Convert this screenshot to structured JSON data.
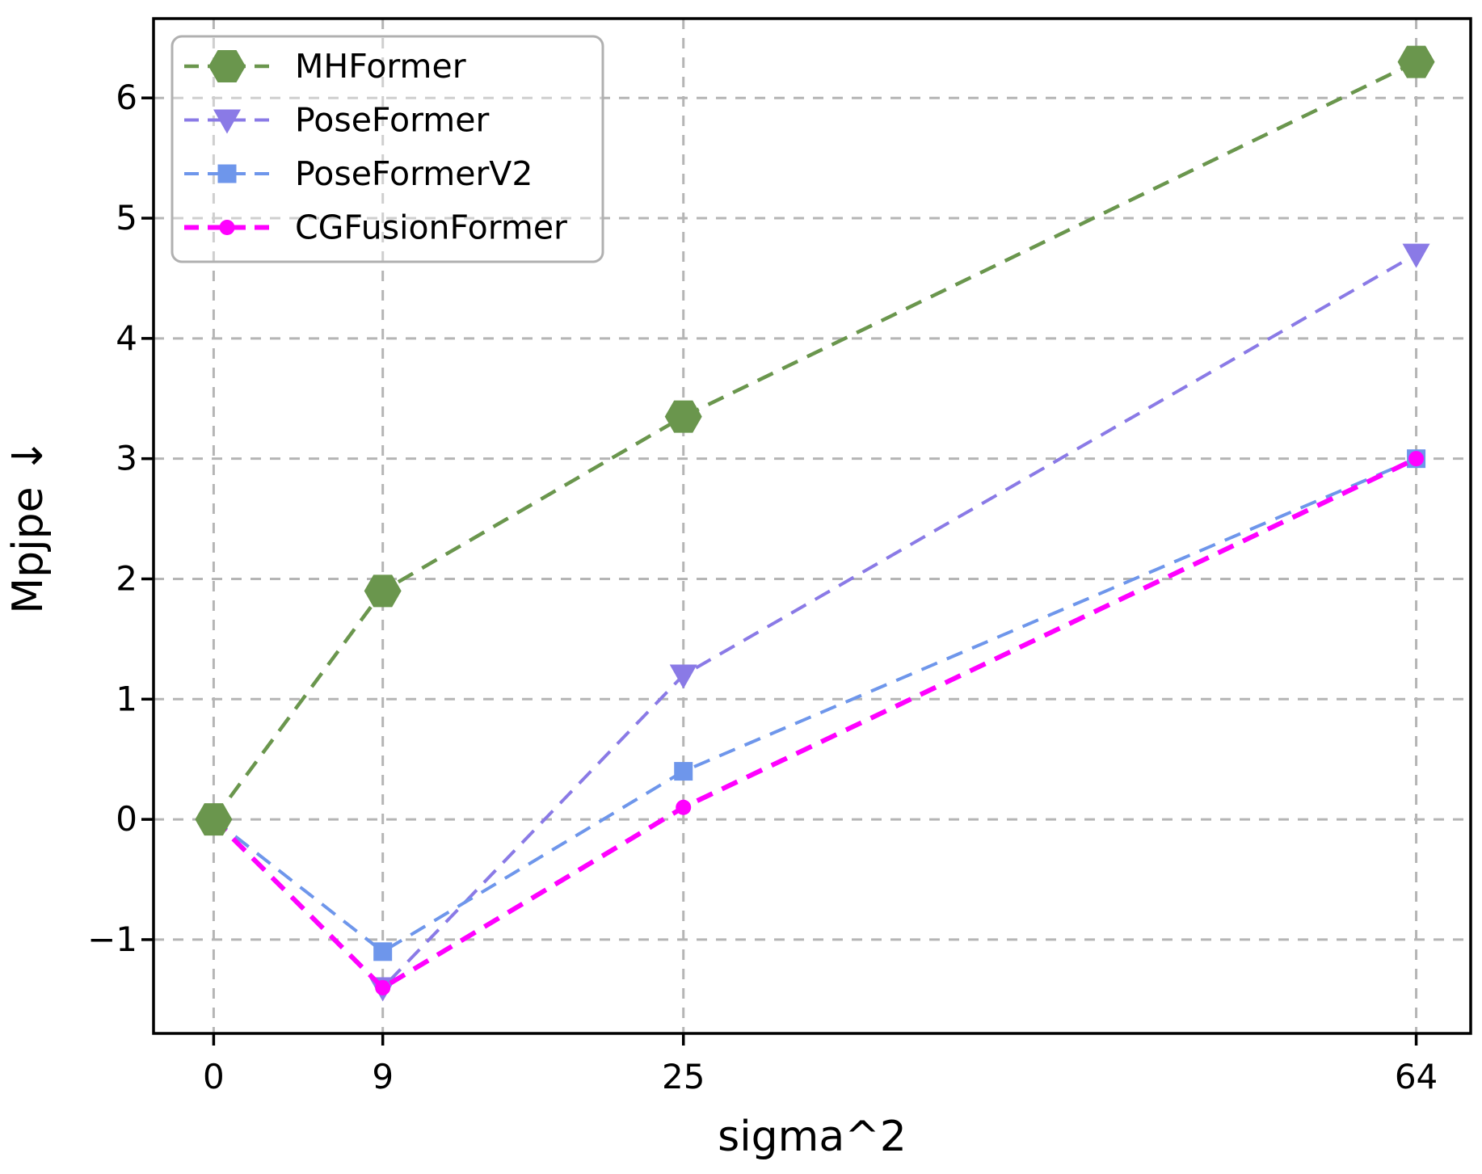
{
  "chart_data": {
    "type": "line",
    "title": "",
    "xlabel": "sigma^2",
    "ylabel": "Mpjpe ↓",
    "x": [
      0,
      9,
      25,
      64
    ],
    "xtick_labels": [
      "0",
      "9",
      "25",
      "64"
    ],
    "yticks": [
      -1,
      0,
      1,
      2,
      3,
      4,
      5,
      6
    ],
    "xlim": [
      -3.2,
      66.9
    ],
    "ylim": [
      -1.78,
      6.66
    ],
    "grid": true,
    "grid_style": "dashed",
    "line_style": "dashed",
    "legend_position": "upper-left",
    "legend_entries": [
      "MHFormer",
      "PoseFormer",
      "PoseFormerV2",
      "CGFusionFormer"
    ],
    "series": [
      {
        "name": "MHFormer",
        "marker": "hexagon",
        "color": "#6a964d",
        "line_width": 4.5,
        "values": [
          0,
          1.9,
          3.35,
          6.3
        ],
        "marker_at_first_point": true,
        "z": 4
      },
      {
        "name": "PoseFormer",
        "marker": "triangle-down",
        "color": "#8a7ae6",
        "line_width": 4,
        "values": [
          0,
          -1.4,
          1.2,
          4.7
        ],
        "marker_at_first_point": false,
        "z": 1
      },
      {
        "name": "PoseFormerV2",
        "marker": "square",
        "color": "#6e96eb",
        "line_width": 4,
        "values": [
          0,
          -1.1,
          0.4,
          3.0
        ],
        "marker_at_first_point": false,
        "z": 2
      },
      {
        "name": "CGFusionFormer",
        "marker": "circle",
        "color": "#ff00ff",
        "line_width": 6,
        "values": [
          0,
          -1.4,
          0.1,
          3.0
        ],
        "marker_at_first_point": false,
        "z": 3
      }
    ],
    "colors": {
      "background": "#ffffff",
      "grid": "#b5b5b5",
      "spine": "#000000",
      "tick_label": "#000000",
      "legend_border": "#b0b0b0"
    }
  }
}
